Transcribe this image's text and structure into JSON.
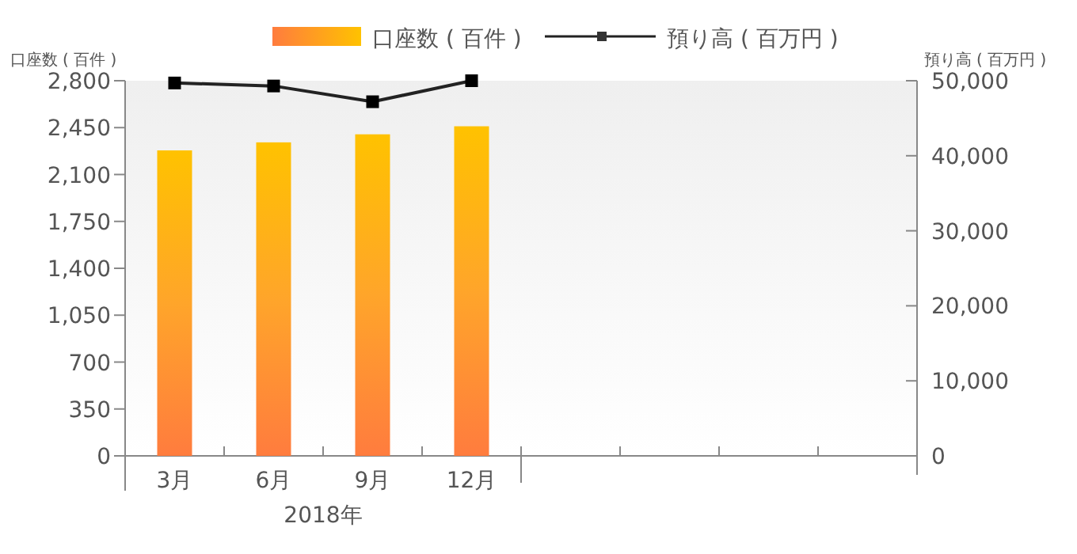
{
  "chart_data": {
    "type": "bar",
    "categories": [
      "3月",
      "6月",
      "9月",
      "12月",
      null,
      null,
      null,
      null
    ],
    "ylabel": "口座数 ( 百件 )",
    "y2label": "預り高 ( 百万円 )",
    "ylim": [
      0,
      2800
    ],
    "yticks": [
      {
        "value": 0,
        "label": "0"
      },
      {
        "value": 350,
        "label": "350"
      },
      {
        "value": 700,
        "label": "700"
      },
      {
        "value": 1050,
        "label": "1,050"
      },
      {
        "value": 1400,
        "label": "1,400"
      },
      {
        "value": 1750,
        "label": "1,750"
      },
      {
        "value": 2100,
        "label": "2,100"
      },
      {
        "value": 2450,
        "label": "2,450"
      },
      {
        "value": 2800,
        "label": "2,800"
      }
    ],
    "y2lim": [
      0,
      50000
    ],
    "y2ticks": [
      {
        "value": 0,
        "label": "0"
      },
      {
        "value": 10000,
        "label": "10,000"
      },
      {
        "value": 20000,
        "label": "20,000"
      },
      {
        "value": 30000,
        "label": "30,000"
      },
      {
        "value": 40000,
        "label": "40,000"
      },
      {
        "value": 50000,
        "label": "50,000"
      }
    ],
    "series": [
      {
        "name": "口座数 ( 百件 )",
        "color": "#ffa52a",
        "values": [
          2280,
          2340,
          2400,
          2460,
          null,
          null,
          null,
          null
        ]
      },
      {
        "name": "預り高 ( 百万円 )",
        "type": "line",
        "axis": "y2",
        "color": "#222222",
        "marker": "square",
        "values": [
          49700,
          49300,
          47200,
          50000,
          null,
          null,
          null,
          null
        ]
      }
    ],
    "annotations": [
      "2018年"
    ],
    "legend": "top",
    "grid": false
  }
}
